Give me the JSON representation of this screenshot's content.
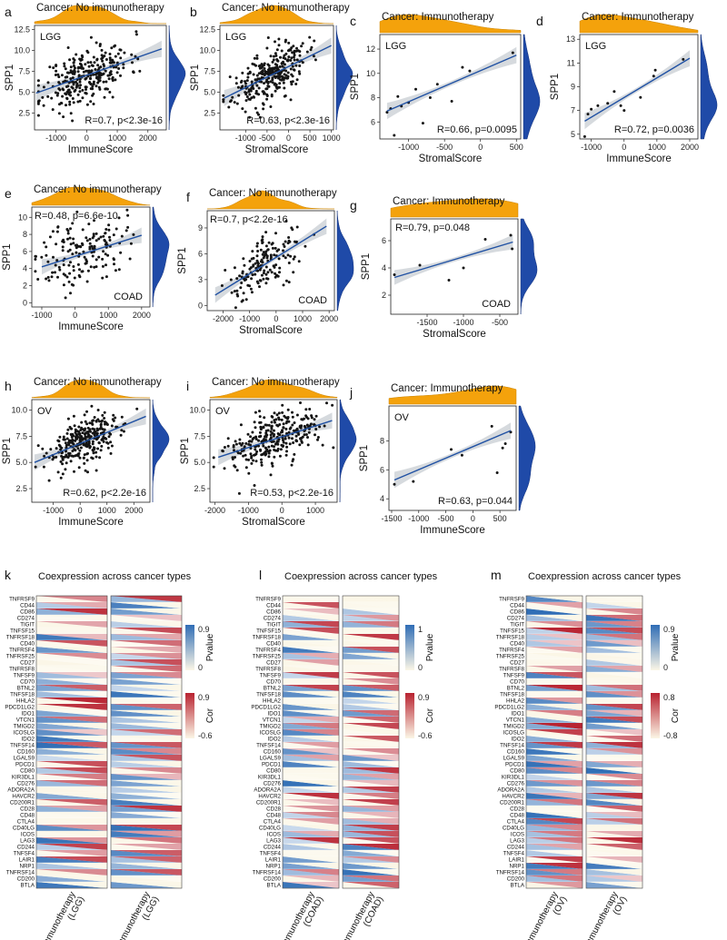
{
  "figure": "Correlation of SPP1 with immune and stromal scores and coexpression heatmaps across cancer types",
  "colors": {
    "density_top": "#f4a20c",
    "density_right": "#1f4aa8",
    "point": "#141414",
    "fit_line": "#2051a3",
    "ci_band": "#cfd3d8",
    "heat_blue": "#2f6db5",
    "heat_red": "#b82230",
    "heat_light": "#fbf6e6"
  },
  "chart_data": [
    {
      "panel": "a",
      "type": "scatter",
      "title": "Cancer: No immunotherapy",
      "cancer_label": "LGG",
      "stat_text": "R=0.7, p<2.3e-16",
      "xlabel": "ImmuneScore",
      "ylabel": "SPP1",
      "x_ticks": [
        -1000,
        0,
        1000,
        2000
      ],
      "y_ticks": [
        2.5,
        5.0,
        7.5,
        10.0,
        12.5
      ],
      "xlim": [
        -1700,
        2600
      ],
      "ylim": [
        0.5,
        13
      ],
      "fit": [
        [
          -1650,
          4.9
        ],
        [
          2450,
          10.2
        ]
      ],
      "n_points": 300,
      "seed": 11,
      "slope": 0.00129,
      "intercept": 7.0,
      "noise": 1.6,
      "xcenter": 0,
      "xspread": 700
    },
    {
      "panel": "b",
      "type": "scatter",
      "title": "Cancer: No immunotherapy",
      "cancer_label": "LGG",
      "stat_text": "R=0.63, p<2.3e-16",
      "xlabel": "StromalScore",
      "ylabel": "SPP1",
      "x_ticks": [
        -1000,
        -500,
        0,
        500,
        1000
      ],
      "y_ticks": [
        2.5,
        5.0,
        7.5,
        10.0,
        12.5
      ],
      "xlim": [
        -1600,
        1050
      ],
      "ylim": [
        0.5,
        13
      ],
      "fit": [
        [
          -1500,
          4.3
        ],
        [
          1000,
          10.6
        ]
      ],
      "n_points": 300,
      "seed": 23,
      "slope": 0.00252,
      "intercept": 8.1,
      "noise": 1.5,
      "xcenter": -450,
      "xspread": 430
    },
    {
      "panel": "c",
      "type": "scatter",
      "title": "Cancer: Immunotherapy",
      "cancer_label": "LGG",
      "stat_text": "R=0.66, p=0.0095",
      "xlabel": "StromalScore",
      "ylabel": "SPP1",
      "x_ticks": [
        -1000,
        -500,
        0,
        500
      ],
      "y_ticks": [
        6,
        8,
        10,
        12
      ],
      "xlim": [
        -1400,
        560
      ],
      "ylim": [
        4.6,
        13.2
      ],
      "fit": [
        [
          -1300,
          6.9
        ],
        [
          500,
          11.5
        ]
      ],
      "points": [
        [
          -1300,
          6.8
        ],
        [
          -1250,
          7.1
        ],
        [
          -1150,
          8.1
        ],
        [
          -1100,
          7.3
        ],
        [
          -1000,
          7.6
        ],
        [
          -900,
          8.7
        ],
        [
          -800,
          5.9
        ],
        [
          -600,
          9.1
        ],
        [
          -400,
          7.7
        ],
        [
          -250,
          10.5
        ],
        [
          -150,
          10.2
        ],
        [
          450,
          11.7
        ],
        [
          -700,
          8.0
        ],
        [
          -1200,
          4.9
        ]
      ]
    },
    {
      "panel": "d",
      "type": "scatter",
      "title": "Cancer: Immunotherapy",
      "cancer_label": "LGG",
      "stat_text": "R=0.72, p=0.0036",
      "xlabel": "ImmuneScore",
      "ylabel": "SPP1",
      "x_ticks": [
        -1000,
        0,
        1000,
        2000
      ],
      "y_ticks": [
        5,
        7,
        9,
        11,
        13
      ],
      "xlim": [
        -1350,
        2250
      ],
      "ylim": [
        4.6,
        13.4
      ],
      "fit": [
        [
          -1200,
          6.1
        ],
        [
          2000,
          11.4
        ]
      ],
      "points": [
        [
          -1200,
          4.8
        ],
        [
          -1000,
          7.1
        ],
        [
          -800,
          7.4
        ],
        [
          -500,
          7.6
        ],
        [
          -300,
          8.6
        ],
        [
          -100,
          7.4
        ],
        [
          0,
          7.0
        ],
        [
          500,
          8.1
        ],
        [
          900,
          9.9
        ],
        [
          950,
          10.4
        ],
        [
          1800,
          11.3
        ],
        [
          -1100,
          6.7
        ]
      ]
    },
    {
      "panel": "e",
      "type": "scatter",
      "title": "Cancer: No immunotherapy",
      "cancer_label": "COAD",
      "stat_text": "R=0.48, p=6.6e-10",
      "xlabel": "ImmuneScore",
      "ylabel": "SPP1",
      "x_ticks": [
        -1000,
        0,
        1000,
        2000
      ],
      "y_ticks": [
        0,
        2,
        4,
        6,
        8,
        10
      ],
      "xlim": [
        -1300,
        2250
      ],
      "ylim": [
        -0.5,
        11.2
      ],
      "fit": [
        [
          -1000,
          4.2
        ],
        [
          2000,
          7.9
        ]
      ],
      "n_points": 160,
      "seed": 37,
      "slope": 0.00123,
      "intercept": 5.7,
      "noise": 2.0,
      "xcenter": 200,
      "xspread": 650
    },
    {
      "panel": "f",
      "type": "scatter",
      "title": "Cancer: No immunotherapy",
      "cancer_label": "COAD",
      "stat_text": "R=0.7, p<2.2e-16",
      "xlabel": "StromalScore",
      "ylabel": "SPP1",
      "x_ticks": [
        -2000,
        -1000,
        0,
        1000,
        2000
      ],
      "y_ticks": [
        0,
        3,
        6,
        9
      ],
      "xlim": [
        -2600,
        2200
      ],
      "ylim": [
        -0.6,
        11
      ],
      "fit": [
        [
          -2300,
          1.2
        ],
        [
          1900,
          9.2
        ]
      ],
      "n_points": 160,
      "seed": 41,
      "slope": 0.0019,
      "intercept": 5.6,
      "noise": 1.5,
      "xcenter": -400,
      "xspread": 700
    },
    {
      "panel": "g",
      "type": "scatter",
      "title": "Cancer: Immunotherapy",
      "cancer_label": "COAD",
      "stat_text": "R=0.79, p=0.048",
      "xlabel": "StromalScore",
      "ylabel": "SPP1",
      "x_ticks": [
        -1500,
        -1000,
        -500
      ],
      "y_ticks": [
        2,
        4,
        6
      ],
      "xlim": [
        -2000,
        -250
      ],
      "ylim": [
        0.6,
        7.6
      ],
      "fit": [
        [
          -1950,
          3.3
        ],
        [
          -320,
          5.9
        ]
      ],
      "points": [
        [
          -1950,
          3.5
        ],
        [
          -1600,
          4.2
        ],
        [
          -1200,
          3.1
        ],
        [
          -1000,
          4.0
        ],
        [
          -700,
          6.1
        ],
        [
          -350,
          6.4
        ],
        [
          -330,
          5.4
        ]
      ]
    },
    {
      "panel": "h",
      "type": "scatter",
      "title": "Cancer: No immunotherapy",
      "cancer_label": "OV",
      "stat_text": "R=0.62, p<2.2e-16",
      "xlabel": "ImmuneScore",
      "ylabel": "SPP1",
      "x_ticks": [
        -1000,
        0,
        1000,
        2000
      ],
      "y_ticks": [
        2.5,
        5.0,
        7.5,
        10.0
      ],
      "xlim": [
        -1800,
        2600
      ],
      "ylim": [
        1.2,
        11
      ],
      "fit": [
        [
          -1700,
          5.0
        ],
        [
          2450,
          9.4
        ]
      ],
      "n_points": 300,
      "seed": 53,
      "slope": 0.00106,
      "intercept": 6.9,
      "noise": 1.1,
      "xcenter": 200,
      "xspread": 700
    },
    {
      "panel": "i",
      "type": "scatter",
      "title": "Cancer: No immunotherapy",
      "cancer_label": "OV",
      "stat_text": "R=0.53, p<2.2e-16",
      "xlabel": "StromalScore",
      "ylabel": "SPP1",
      "x_ticks": [
        -2000,
        -1000,
        0,
        1000
      ],
      "y_ticks": [
        2.5,
        5.0,
        7.5,
        10.0
      ],
      "xlim": [
        -2150,
        1650
      ],
      "ylim": [
        1.2,
        11
      ],
      "fit": [
        [
          -1900,
          5.5
        ],
        [
          1500,
          9.0
        ]
      ],
      "n_points": 300,
      "seed": 67,
      "slope": 0.00103,
      "intercept": 7.4,
      "noise": 1.2,
      "xcenter": -300,
      "xspread": 650
    },
    {
      "panel": "j",
      "type": "scatter",
      "title": "Cancer: Immunotherapy",
      "cancer_label": "OV",
      "stat_text": "R=0.63, p=0.044",
      "xlabel": "ImmuneScore",
      "ylabel": "SPP1",
      "x_ticks": [
        -1500,
        -1000,
        -500,
        0,
        500
      ],
      "y_ticks": [
        4,
        6,
        8
      ],
      "xlim": [
        -1550,
        800
      ],
      "ylim": [
        3.2,
        10.4
      ],
      "fit": [
        [
          -1450,
          5.3
        ],
        [
          700,
          8.7
        ]
      ],
      "points": [
        [
          -1450,
          5.0
        ],
        [
          -1100,
          5.2
        ],
        [
          -400,
          7.4
        ],
        [
          -200,
          7.0
        ],
        [
          350,
          9.0
        ],
        [
          450,
          5.8
        ],
        [
          550,
          7.5
        ],
        [
          600,
          7.8
        ],
        [
          700,
          8.6
        ]
      ]
    },
    {
      "panel": "k",
      "type": "heatmap",
      "title": "Coexpression across cancer types",
      "columns": [
        "Immunotherapy\n(LGG)",
        "No immunotherapy\n(LGG)"
      ],
      "rows": [
        "TNFRSF9",
        "CD44",
        "CD86",
        "CD274",
        "TIGIT",
        "TNFSF15",
        "TNFRSF18",
        "CD40",
        "TNFRSF4",
        "TNFRSF25",
        "CD27",
        "TNFRSF8",
        "TNFSF9",
        "CD70",
        "BTNL2",
        "TNFSF18",
        "HHLA2",
        "PDCD1LG2",
        "IDO1",
        "VTCN1",
        "TMIGD2",
        "ICOSLG",
        "IDO2",
        "TNFSF14",
        "CD160",
        "LGALS9",
        "PDCD1",
        "CD80",
        "KIR3DL1",
        "CD276",
        "ADORA2A",
        "HAVCR2",
        "CD200R1",
        "CD28",
        "CD48",
        "CTLA4",
        "CD40LG",
        "ICOS",
        "LAG3",
        "CD244",
        "TNFSF4",
        "LAIR1",
        "NRP1",
        "TNFRSF14",
        "CD200",
        "BTLA"
      ],
      "seed": 101,
      "pvalue_legend": {
        "label": "Pvalue",
        "ticks": [
          "0.9",
          "0"
        ]
      },
      "cor_legend": {
        "label": "Cor",
        "ticks": [
          "0.9",
          "-0.6"
        ]
      }
    },
    {
      "panel": "l",
      "type": "heatmap",
      "title": "Coexpression across cancer types",
      "columns": [
        "Immunotherapy\n(COAD)",
        "No immunotherapy\n(COAD)"
      ],
      "rows": [
        "TNFRSF9",
        "CD44",
        "CD86",
        "CD274",
        "TIGIT",
        "TNFSF15",
        "TNFRSF18",
        "CD40",
        "TNFRSF4",
        "TNFRSF25",
        "CD27",
        "TNFRSF8",
        "TNFSF9",
        "CD70",
        "BTNL2",
        "TNFSF18",
        "HHLA2",
        "PDCD1LG2",
        "IDO1",
        "VTCN1",
        "TMIGD2",
        "ICOSLG",
        "IDO2",
        "TNFSF14",
        "CD160",
        "LGALS9",
        "PDCD1",
        "CD80",
        "KIR3DL1",
        "CD276",
        "ADORA2A",
        "HAVCR2",
        "CD200R1",
        "CD28",
        "CD48",
        "CTLA4",
        "CD40LG",
        "ICOS",
        "LAG3",
        "CD244",
        "TNFSF4",
        "LAIR1",
        "NRP1",
        "TNFRSF14",
        "CD200",
        "BTLA"
      ],
      "seed": 202,
      "pvalue_legend": {
        "label": "Pvalue",
        "ticks": [
          "1",
          "0"
        ]
      },
      "cor_legend": {
        "label": "Cor",
        "ticks": [
          "0.9",
          "-0.6"
        ]
      }
    },
    {
      "panel": "m",
      "type": "heatmap",
      "title": "Coexpression across cancer types",
      "columns": [
        "Immunotherapy\n(OV)",
        "No immunotherapy\n(OV)"
      ],
      "rows": [
        "TNFRSF9",
        "CD44",
        "CD86",
        "CD274",
        "TIGIT",
        "TNFSF15",
        "TNFRSF18",
        "CD40",
        "TNFRSF4",
        "TNFRSF25",
        "CD27",
        "TNFRSF8",
        "TNFSF9",
        "CD70",
        "BTNL2",
        "TNFSF18",
        "HHLA2",
        "PDCD1LG2",
        "IDO1",
        "VTCN1",
        "TMIGD2",
        "ICOSLG",
        "IDO2",
        "TNFSF14",
        "CD160",
        "LGALS9",
        "PDCD1",
        "CD80",
        "KIR3DL1",
        "CD276",
        "ADORA2A",
        "HAVCR2",
        "CD200R1",
        "CD28",
        "CD48",
        "CTLA4",
        "CD40LG",
        "ICOS",
        "LAG3",
        "CD244",
        "TNFSF4",
        "LAIR1",
        "NRP1",
        "TNFRSF14",
        "CD200",
        "BTLA"
      ],
      "seed": 303,
      "pvalue_legend": {
        "label": "Pvalue",
        "ticks": [
          "0.9",
          "0"
        ]
      },
      "cor_legend": {
        "label": "Cor",
        "ticks": [
          "0.8",
          "-0.8"
        ]
      }
    }
  ]
}
